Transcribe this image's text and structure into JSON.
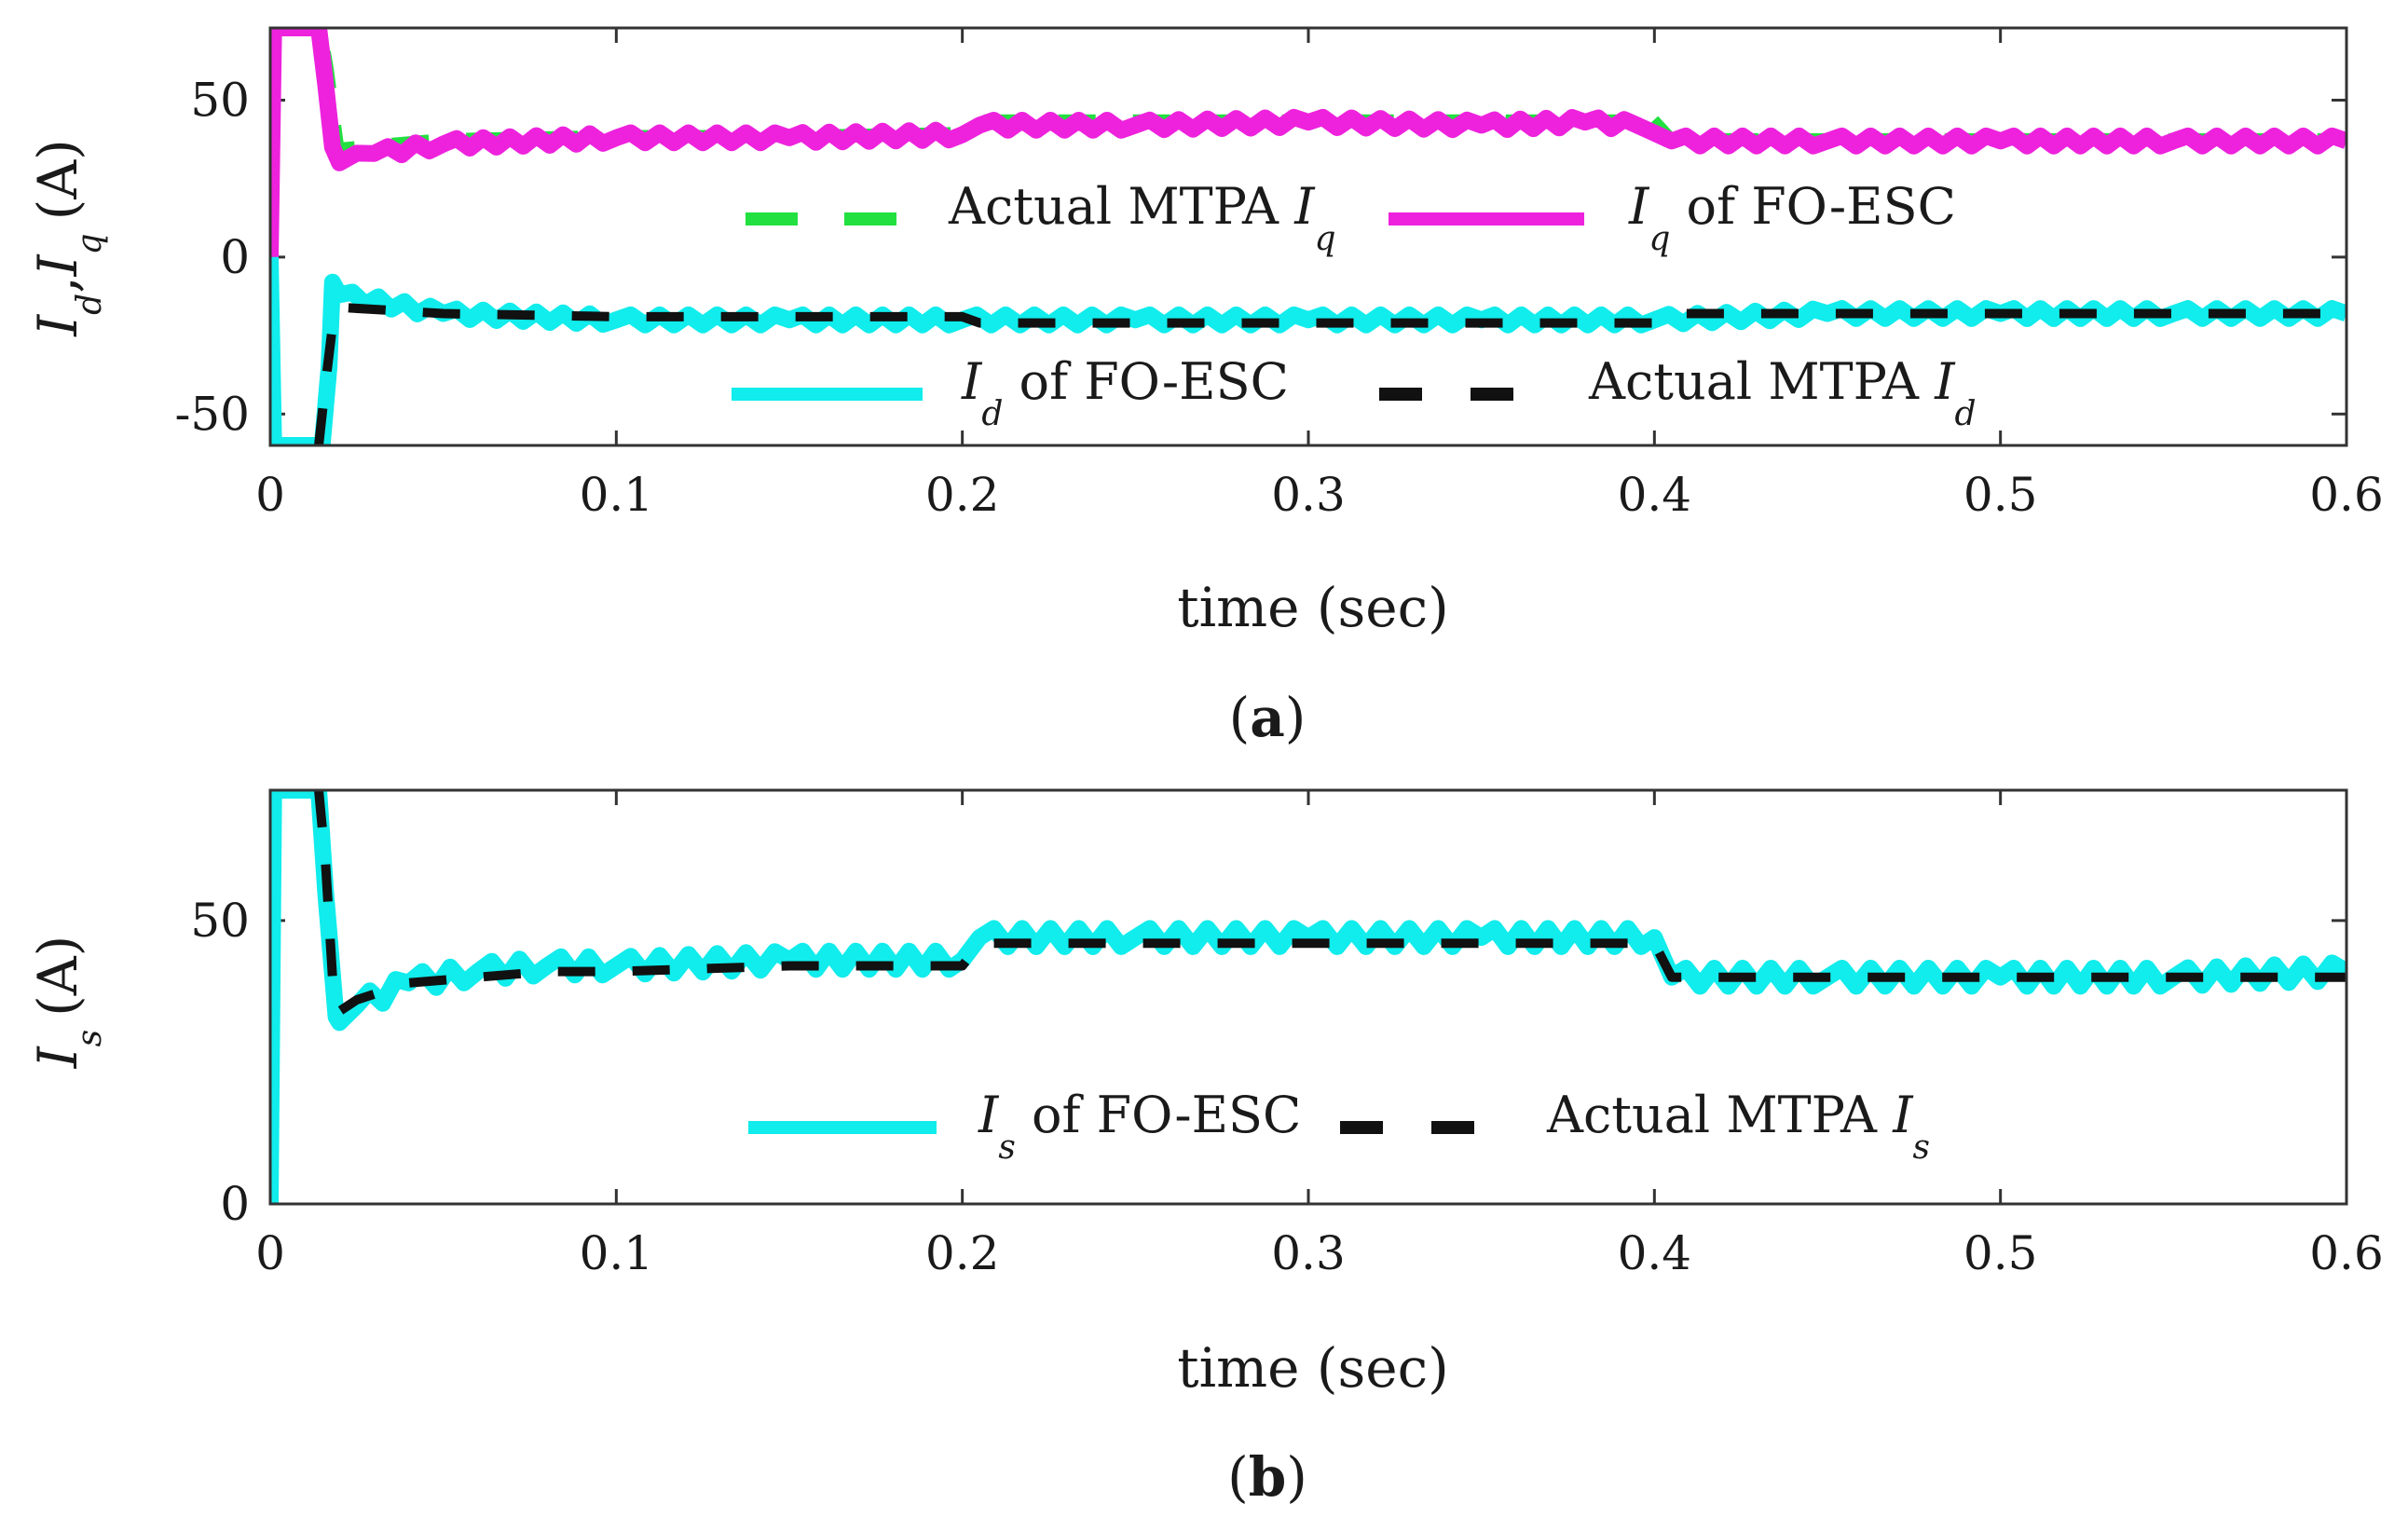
{
  "figure": {
    "colors": {
      "green": "#22e040",
      "magenta": "#ee22dd",
      "cyan": "#11ecec",
      "black": "#111111",
      "axis": "#333333",
      "text": "#1a1a1a"
    }
  },
  "chart_data": [
    {
      "id": "a",
      "type": "line",
      "caption": {
        "open": "(",
        "letter": "a",
        "close": ")"
      },
      "xlabel": "time (sec)",
      "ylabel": {
        "i1": "I",
        "s1": "d",
        "comma": ",",
        "i2": "I",
        "s2": "q",
        "unit": "(A)"
      },
      "xlim": [
        0,
        0.6
      ],
      "ylim": [
        -60,
        73
      ],
      "xticks": [
        "0",
        "0.1",
        "0.2",
        "0.3",
        "0.4",
        "0.5",
        "0.6"
      ],
      "xtick_values": [
        0,
        0.1,
        0.2,
        0.3,
        0.4,
        0.5,
        0.6
      ],
      "yticks": [
        "-50",
        "0",
        "50"
      ],
      "ytick_values": [
        -50,
        0,
        50
      ],
      "series": [
        {
          "name": "Actual MTPA Iq",
          "color": "green",
          "dash": true,
          "legend": {
            "pre": "Actual MTPA ",
            "italic": "I",
            "sub": "q",
            "post": ""
          },
          "x": [
            0,
            0.002,
            0.005,
            0.015,
            0.017,
            0.02,
            0.05,
            0.1,
            0.15,
            0.2,
            0.205,
            0.25,
            0.3,
            0.35,
            0.39,
            0.4,
            0.405,
            0.45,
            0.5,
            0.55,
            0.6
          ],
          "y": [
            0,
            73,
            73,
            73,
            60,
            35,
            38,
            39,
            39,
            40,
            44,
            44,
            44,
            44,
            44,
            44,
            38,
            38,
            38,
            38,
            38
          ]
        },
        {
          "name": "Iq of FO-ESC",
          "color": "magenta",
          "dash": false,
          "legend": {
            "pre": "",
            "italic": "I",
            "sub": "q",
            "post": " of FO-ESC"
          },
          "x": [
            0,
            0.001,
            0.004,
            0.014,
            0.016,
            0.018,
            0.02,
            0.03,
            0.05,
            0.1,
            0.15,
            0.2,
            0.205,
            0.25,
            0.3,
            0.35,
            0.38,
            0.395,
            0.405,
            0.45,
            0.5,
            0.55,
            0.6
          ],
          "y": [
            0,
            73,
            73,
            73,
            55,
            35,
            30,
            33,
            36,
            38,
            38,
            39,
            42,
            42,
            43,
            42,
            43,
            42,
            37,
            37,
            37,
            37,
            37
          ]
        },
        {
          "name": "Id of FO-ESC",
          "color": "cyan",
          "dash": false,
          "legend": {
            "pre": "",
            "italic": "I",
            "sub": "d",
            "post": " of FO-ESC"
          },
          "x": [
            0,
            0.001,
            0.015,
            0.017,
            0.018,
            0.02,
            0.05,
            0.1,
            0.15,
            0.2,
            0.25,
            0.3,
            0.35,
            0.4,
            0.45,
            0.5,
            0.55,
            0.6
          ],
          "y": [
            0,
            -60,
            -60,
            -35,
            -8,
            -12,
            -18,
            -20,
            -20,
            -20,
            -20,
            -20,
            -20,
            -20,
            -18,
            -18,
            -18,
            -18
          ]
        },
        {
          "name": "Actual MTPA Id",
          "color": "black",
          "dash": true,
          "legend": {
            "pre": "Actual MTPA ",
            "italic": "I",
            "sub": "d",
            "post": ""
          },
          "x": [
            0.014,
            0.016,
            0.018,
            0.02,
            0.05,
            0.1,
            0.15,
            0.2,
            0.205,
            0.25,
            0.3,
            0.35,
            0.4,
            0.405,
            0.45,
            0.5,
            0.55,
            0.6
          ],
          "y": [
            -60,
            -40,
            -22,
            -16,
            -18,
            -19,
            -19,
            -19,
            -21,
            -21,
            -21,
            -21,
            -21,
            -18,
            -18,
            -18,
            -18,
            -18
          ]
        }
      ]
    },
    {
      "id": "b",
      "type": "line",
      "caption": {
        "open": "(",
        "letter": "b",
        "close": ")"
      },
      "xlabel": "time (sec)",
      "ylabel": {
        "i1": "I",
        "s1": "s",
        "unit": "(A)"
      },
      "xlim": [
        0,
        0.6
      ],
      "ylim": [
        0,
        73
      ],
      "xticks": [
        "0",
        "0.1",
        "0.2",
        "0.3",
        "0.4",
        "0.5",
        "0.6"
      ],
      "xtick_values": [
        0,
        0.1,
        0.2,
        0.3,
        0.4,
        0.5,
        0.6
      ],
      "yticks": [
        "0",
        "50"
      ],
      "ytick_values": [
        0,
        50
      ],
      "series": [
        {
          "name": "Is of FO-ESC",
          "color": "cyan",
          "dash": false,
          "legend": {
            "pre": "",
            "italic": "I",
            "sub": "s",
            "post": " of FO-ESC"
          },
          "x": [
            0,
            0.001,
            0.014,
            0.016,
            0.019,
            0.02,
            0.025,
            0.04,
            0.06,
            0.08,
            0.1,
            0.15,
            0.2,
            0.205,
            0.25,
            0.3,
            0.35,
            0.4,
            0.405,
            0.45,
            0.5,
            0.55,
            0.6
          ],
          "y": [
            0,
            73,
            73,
            55,
            33,
            32,
            35,
            39,
            41,
            42,
            42,
            43,
            43,
            47,
            47,
            47,
            47,
            47,
            40,
            40,
            40,
            40,
            41
          ]
        },
        {
          "name": "Actual MTPA Is",
          "color": "black",
          "dash": true,
          "legend": {
            "pre": "Actual MTPA ",
            "italic": "I",
            "sub": "s",
            "post": ""
          },
          "x": [
            0.014,
            0.016,
            0.018,
            0.02,
            0.025,
            0.04,
            0.06,
            0.08,
            0.1,
            0.15,
            0.2,
            0.205,
            0.25,
            0.3,
            0.35,
            0.4,
            0.405,
            0.45,
            0.5,
            0.55,
            0.6
          ],
          "y": [
            73,
            60,
            40,
            34,
            36,
            39,
            40,
            41,
            41,
            42,
            42,
            46,
            46,
            46,
            46,
            46,
            40,
            40,
            40,
            40,
            40
          ]
        }
      ]
    }
  ]
}
